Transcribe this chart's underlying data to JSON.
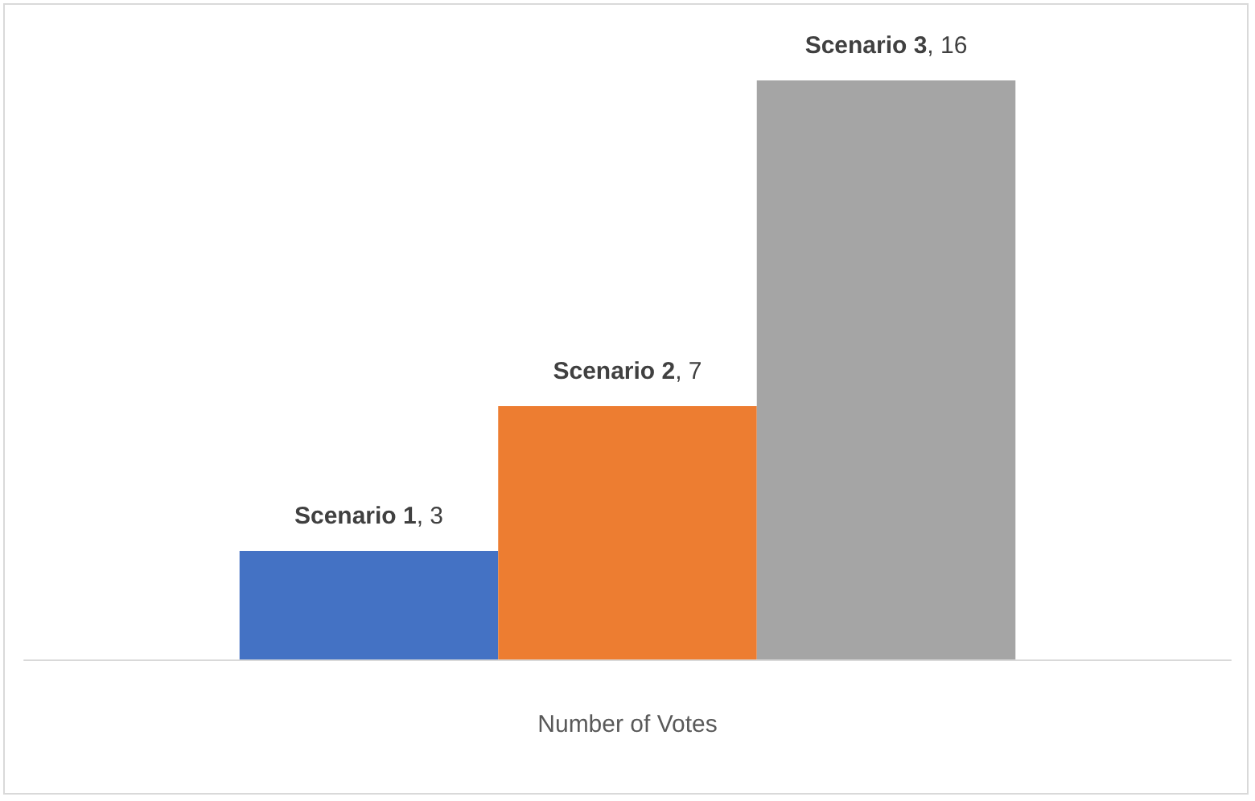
{
  "chart_data": {
    "type": "bar",
    "categories": [
      null
    ],
    "xlabel": "Number of Votes",
    "series": [
      {
        "name": "Scenario 1",
        "color": "#4472c4",
        "values": [
          3
        ],
        "value_labels": [
          ", 3"
        ]
      },
      {
        "name": "Scenario 2",
        "color": "#ed7d31",
        "values": [
          7
        ],
        "value_labels": [
          ", 7"
        ]
      },
      {
        "name": "Scenario 3",
        "color": "#a5a5a5",
        "values": [
          16
        ],
        "value_labels": [
          ", 16"
        ]
      }
    ],
    "grid": false,
    "legend": false
  }
}
